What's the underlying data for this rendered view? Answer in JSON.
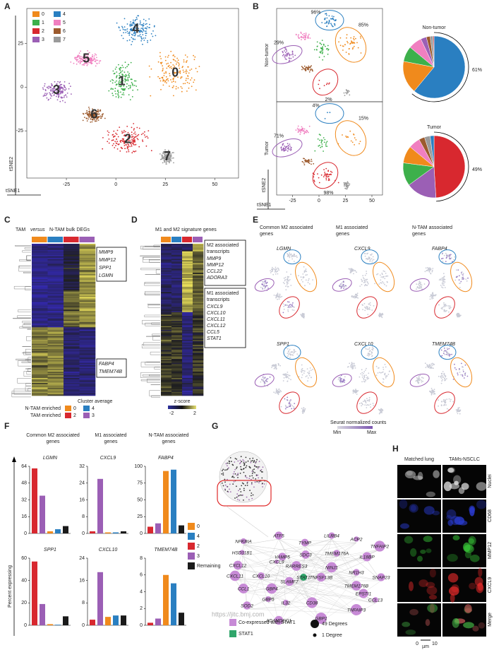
{
  "panel_labels": [
    "A",
    "B",
    "C",
    "D",
    "E",
    "F",
    "G",
    "H"
  ],
  "panel_a": {
    "clusters": [
      "0",
      "1",
      "2",
      "3",
      "4",
      "5",
      "6",
      "7"
    ],
    "colors": [
      "#f08a1c",
      "#3db04b",
      "#d8282f",
      "#9b5fb5",
      "#2a7fc1",
      "#f07fc0",
      "#9c5a2d",
      "#9a9a9a"
    ],
    "xlabel": "tSNE1",
    "ylabel": "tSNE2",
    "xlim": [
      -45,
      62
    ],
    "ylim": [
      -52,
      45
    ],
    "xticks": [
      -25,
      0,
      25,
      50
    ],
    "yticks": [
      25,
      0,
      -25
    ]
  },
  "panel_b": {
    "rows": [
      "Non-tumor",
      "Tumor"
    ],
    "non_tumor_labels": [
      "96%",
      "85%",
      "29%",
      "2%"
    ],
    "tumor_labels": [
      "4%",
      "15%",
      "71%",
      "98%"
    ],
    "xlabel": "tSNE1",
    "ylabel": "tSNE2",
    "xticks": [
      -25,
      0,
      25,
      50
    ],
    "pies": [
      {
        "title": "Non-tumor",
        "values": [
          17,
          8,
          0.5,
          3,
          61,
          7,
          2,
          1.5
        ],
        "value_labels": [
          null,
          null,
          null,
          null,
          "61%",
          null,
          null,
          null
        ]
      },
      {
        "title": "Tumor",
        "values": [
          9,
          12,
          49,
          16,
          2,
          6,
          3,
          3
        ],
        "value_labels": [
          null,
          null,
          "49%",
          null,
          null,
          null,
          null,
          null
        ]
      }
    ]
  },
  "panel_c": {
    "title_parts": [
      "TAM ",
      "versus",
      " N-TAM bulk DEGs"
    ],
    "genes_top": [
      "MMP9",
      "MMP12",
      "SPP1",
      "LGMN"
    ],
    "genes_bottom": [
      "FABP4",
      "TMEM74B"
    ],
    "legend_title": "Cluster average",
    "legend_rows": [
      "N-TAM enriched",
      "TAM enriched"
    ],
    "legend_clusters": [
      "0",
      "4",
      "2",
      "3"
    ]
  },
  "panel_d": {
    "title": "M1 and M2 signature genes",
    "m2_header": [
      "M2 associated",
      "transcripts"
    ],
    "m2_genes": [
      "MMP9",
      "MMP12",
      "CCL22",
      "ADORA3"
    ],
    "m1_header": [
      "M1 associated",
      "transcripts"
    ],
    "m1_genes": [
      "CXCL9",
      "CXCL10",
      "CXCL11",
      "CXCL12",
      "CCL5",
      "STAT1"
    ],
    "scale_title": "z-score",
    "scale_ticks": [
      "-2",
      "2"
    ]
  },
  "panel_e": {
    "headers": [
      [
        "Common M2 associated",
        "genes"
      ],
      [
        "M1 associated",
        "genes"
      ],
      [
        "N-TAM associated",
        "genes"
      ]
    ],
    "genes": [
      "LGMN",
      "CXCL9",
      "FABP4",
      "SPP1",
      "CXCL10",
      "TMEM74B"
    ],
    "scale_title": "Seurat normalized counts",
    "scale_ends": [
      "Min",
      "Max"
    ]
  },
  "panel_f": {
    "headers": [
      [
        "Common M2 associated",
        "genes"
      ],
      [
        "M1 associated",
        "genes"
      ],
      [
        "N-TAM associated",
        "genes"
      ]
    ],
    "ylabel": "Percent expressing",
    "groups": [
      {
        "name": "0",
        "color": "#f08a1c"
      },
      {
        "name": "4",
        "color": "#2a7fc1"
      },
      {
        "name": "2",
        "color": "#d8282f"
      },
      {
        "name": "3",
        "color": "#9b5fb5"
      },
      {
        "name": "Remaining",
        "color": "#1a1a1a"
      }
    ],
    "charts": [
      {
        "gene": "LGMN",
        "values": [
          2,
          4,
          62,
          36,
          7
        ],
        "ylim": [
          0,
          64
        ],
        "yticks": [
          0,
          16,
          32,
          48,
          64
        ]
      },
      {
        "gene": "CXCL9",
        "values": [
          0.5,
          0.5,
          1,
          26,
          1
        ],
        "ylim": [
          0,
          32
        ],
        "yticks": [
          0,
          8,
          16,
          24,
          32
        ]
      },
      {
        "gene": "FABP4",
        "values": [
          93,
          95,
          10,
          15,
          12
        ],
        "ylim": [
          0,
          100
        ],
        "yticks": [
          0,
          25,
          50,
          75,
          100
        ]
      },
      {
        "gene": "SPP1",
        "values": [
          1,
          0.5,
          57,
          19,
          8
        ],
        "ylim": [
          0,
          60
        ],
        "yticks": [
          0,
          20,
          40,
          60
        ]
      },
      {
        "gene": "CXCL10",
        "values": [
          3,
          3.5,
          2,
          19,
          3.5
        ],
        "ylim": [
          0,
          24
        ],
        "yticks": [
          0,
          8,
          16,
          24
        ]
      },
      {
        "gene": "TMEM74B",
        "values": [
          6,
          5,
          0.3,
          0.8,
          1.5
        ],
        "ylim": [
          0,
          8
        ],
        "yticks": [
          0,
          2,
          4,
          6,
          8
        ]
      }
    ]
  },
  "panel_g": {
    "genes": [
      "NFKBIA",
      "ATF5",
      "TYMP",
      "LILRB4",
      "ACP2",
      "TNFAIP2",
      "HSD11B1",
      "VAMP5",
      "SDC3",
      "TMEM176A",
      "IL18BP",
      "CXCL12",
      "CXCL9",
      "RARRES3",
      "NINJ1",
      "CXCL11",
      "CXCL10",
      "STAT1",
      "TNFSF13B",
      "NR1H3",
      "TMEM176B",
      "SNAP23",
      "EPSTI1",
      "CCL13",
      "CCL1",
      "GBP4",
      "SLAMF7",
      "GBP5",
      "SOD2",
      "IL32",
      "CD38",
      "ADAMDEC1",
      "GBP1",
      "TNFAIP3"
    ],
    "legend": [
      "Co-expressed with STAT1",
      "STAT1"
    ],
    "size_legend": [
      "49 Degrees",
      "1 Degree"
    ],
    "watermark": "https://jitc.bmj.com"
  },
  "panel_h": {
    "columns": [
      "Matched lung",
      "TAMs-NSCLC"
    ],
    "rows": [
      "Nuclei",
      "CD68",
      "MMP12",
      "CXCL9",
      "Merge"
    ],
    "scale": [
      "0",
      "10",
      "µm"
    ]
  }
}
